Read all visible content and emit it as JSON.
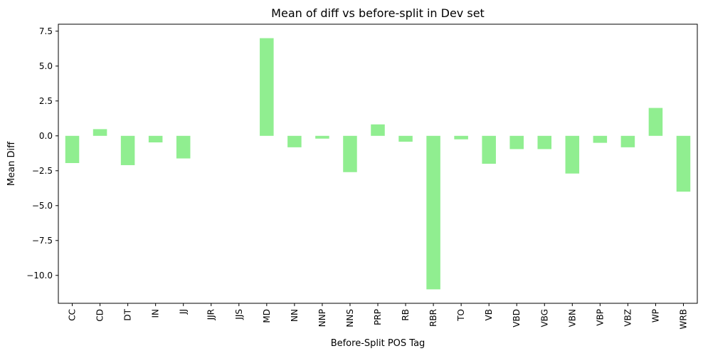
{
  "chart_data": {
    "type": "bar",
    "title": "Mean of diff vs before-split in Dev set",
    "xlabel": "Before-Split POS Tag",
    "ylabel": "Mean Diff",
    "ylim": [
      -12,
      8
    ],
    "yticks": [
      7.5,
      5.0,
      2.5,
      0.0,
      -2.5,
      -5.0,
      -7.5,
      -10.0
    ],
    "ytick_labels": [
      "7.5",
      "5.0",
      "2.5",
      "0.0",
      "−2.5",
      "−5.0",
      "−7.5",
      "−10.0"
    ],
    "grid": false,
    "bar_color": "#90ee90",
    "categories": [
      "CC",
      "CD",
      "DT",
      "IN",
      "JJ",
      "JJR",
      "JJS",
      "MD",
      "NN",
      "NNP",
      "NNS",
      "PRP",
      "RB",
      "RBR",
      "TO",
      "VB",
      "VBD",
      "VBG",
      "VBN",
      "VBP",
      "VBZ",
      "WP",
      "WRB"
    ],
    "values": [
      -1.95,
      0.48,
      -2.1,
      -0.47,
      -1.62,
      0.0,
      0.0,
      7.0,
      -0.82,
      -0.2,
      -2.6,
      0.82,
      -0.42,
      -11.0,
      -0.25,
      -2.0,
      -0.95,
      -0.95,
      -2.7,
      -0.5,
      -0.82,
      2.0,
      -4.0
    ]
  }
}
